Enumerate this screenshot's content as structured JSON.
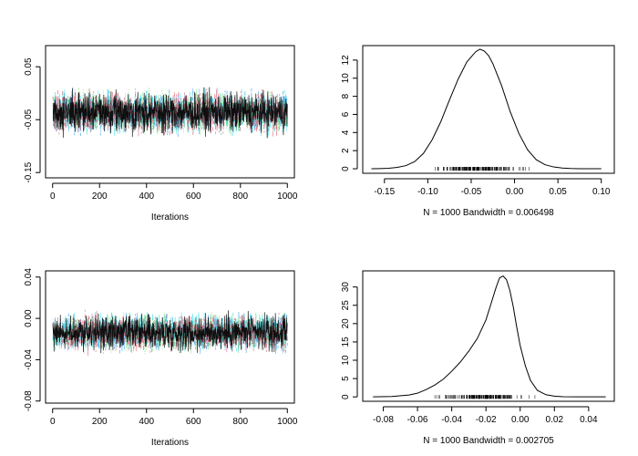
{
  "chart_data": [
    {
      "type": "line",
      "panel": "trace-1",
      "title": "",
      "xlabel": "Iterations",
      "ylabel": "",
      "xlim": [
        -30,
        1030
      ],
      "ylim": [
        -0.16,
        0.09
      ],
      "x_ticks": [
        0,
        200,
        400,
        600,
        800,
        1000
      ],
      "y_ticks": [
        -0.15,
        -0.05,
        0.05
      ],
      "center": -0.036,
      "spread": 0.022,
      "n_iterations": 1000,
      "grid": false,
      "series": [
        {
          "color": "#000000",
          "dash": "solid"
        },
        {
          "color": "#DF536B",
          "dash": "dashed"
        },
        {
          "color": "#61D04F",
          "dash": "dotted"
        },
        {
          "color": "#2297E6",
          "dash": "dotdash"
        },
        {
          "color": "#28E2E5",
          "dash": "longdash"
        }
      ]
    },
    {
      "type": "line",
      "panel": "density-1",
      "title": "",
      "xlabel": "N = 1000   Bandwidth = 0.006498",
      "ylabel": "",
      "xlim": [
        -0.175,
        0.115
      ],
      "ylim": [
        -0.5,
        13.6
      ],
      "x_ticks": [
        -0.15,
        -0.1,
        -0.05,
        0.0,
        0.05,
        0.1
      ],
      "y_ticks": [
        0,
        2,
        4,
        6,
        8,
        10,
        12
      ],
      "x": [
        -0.165,
        -0.155,
        -0.145,
        -0.135,
        -0.125,
        -0.115,
        -0.105,
        -0.095,
        -0.085,
        -0.075,
        -0.065,
        -0.055,
        -0.045,
        -0.04,
        -0.035,
        -0.03,
        -0.025,
        -0.015,
        -0.005,
        0.005,
        0.015,
        0.025,
        0.035,
        0.045,
        0.055,
        0.065,
        0.075,
        0.085,
        0.1
      ],
      "y": [
        0.0,
        0.02,
        0.05,
        0.15,
        0.35,
        0.8,
        1.7,
        3.2,
        5.2,
        7.6,
        9.9,
        11.8,
        12.9,
        13.2,
        13.0,
        12.5,
        11.6,
        9.2,
        6.3,
        3.9,
        2.1,
        1.0,
        0.45,
        0.2,
        0.08,
        0.03,
        0.01,
        0.0,
        0.0
      ],
      "rug_range": [
        -0.115,
        0.035
      ],
      "grid": false
    },
    {
      "type": "line",
      "panel": "trace-2",
      "title": "",
      "xlabel": "Iterations",
      "ylabel": "",
      "xlim": [
        -30,
        1030
      ],
      "ylim": [
        -0.082,
        0.046
      ],
      "x_ticks": [
        0,
        200,
        400,
        600,
        800,
        1000
      ],
      "y_ticks": [
        -0.08,
        -0.04,
        0.0,
        0.04
      ],
      "center": -0.014,
      "spread": 0.01,
      "n_iterations": 1000,
      "grid": false,
      "series": [
        {
          "color": "#000000",
          "dash": "solid"
        },
        {
          "color": "#DF536B",
          "dash": "dashed"
        },
        {
          "color": "#61D04F",
          "dash": "dotted"
        },
        {
          "color": "#2297E6",
          "dash": "dotdash"
        },
        {
          "color": "#28E2E5",
          "dash": "longdash"
        }
      ]
    },
    {
      "type": "line",
      "panel": "density-2",
      "title": "",
      "xlabel": "N = 1000   Bandwidth = 0.002705",
      "ylabel": "",
      "xlim": [
        -0.092,
        0.055
      ],
      "ylim": [
        -1.2,
        34.4
      ],
      "x_ticks": [
        -0.08,
        -0.06,
        -0.04,
        -0.02,
        0.0,
        0.02,
        0.04
      ],
      "y_ticks": [
        0,
        5,
        10,
        15,
        20,
        25,
        30
      ],
      "x": [
        -0.086,
        -0.075,
        -0.065,
        -0.06,
        -0.055,
        -0.05,
        -0.045,
        -0.04,
        -0.035,
        -0.03,
        -0.025,
        -0.02,
        -0.017,
        -0.014,
        -0.012,
        -0.01,
        -0.008,
        -0.006,
        -0.004,
        -0.002,
        0.0,
        0.003,
        0.006,
        0.01,
        0.015,
        0.02,
        0.025,
        0.035,
        0.05
      ],
      "y": [
        0.0,
        0.1,
        0.5,
        1.0,
        2.0,
        3.2,
        4.8,
        7.0,
        9.5,
        12.5,
        16.0,
        21.0,
        25.5,
        30.0,
        32.5,
        33.0,
        32.0,
        29.0,
        24.5,
        19.0,
        14.0,
        8.5,
        4.5,
        1.8,
        0.6,
        0.2,
        0.05,
        0.0,
        0.0
      ],
      "rug_range": [
        -0.062,
        0.018
      ],
      "grid": false
    }
  ]
}
